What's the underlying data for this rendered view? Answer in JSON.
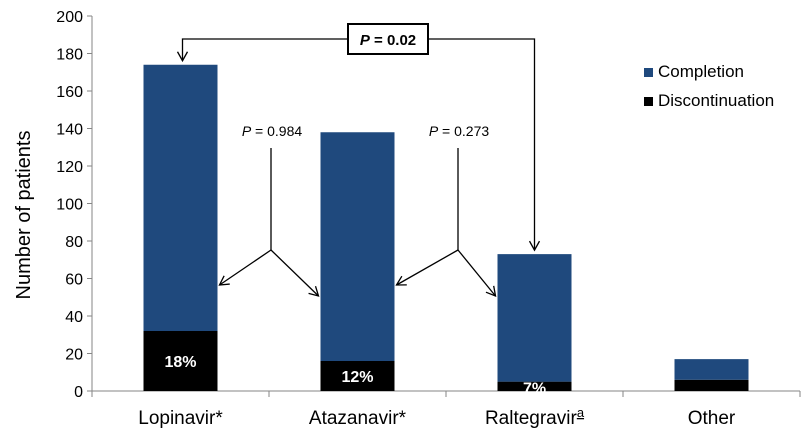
{
  "chart_data": {
    "type": "bar",
    "stacked": true,
    "ylabel": "Number of patients",
    "ylim": [
      0,
      200
    ],
    "yticks": [
      0,
      20,
      40,
      60,
      80,
      100,
      120,
      140,
      160,
      180,
      200
    ],
    "categories": [
      "Lopinavir*",
      "Atazanavir*",
      "Raltegravir",
      "Other"
    ],
    "category_superscripts": [
      "",
      "",
      "a",
      ""
    ],
    "series": [
      {
        "name": "Discontinuation",
        "color": "#000000",
        "values": [
          32,
          16,
          5,
          6
        ]
      },
      {
        "name": "Completion",
        "color": "#1f497d",
        "values": [
          142,
          122,
          68,
          11
        ]
      }
    ],
    "data_labels": [
      "18%",
      "12%",
      "7%",
      ""
    ],
    "legend": {
      "placement": "top-right",
      "order": [
        "Completion",
        "Discontinuation"
      ]
    },
    "annotations": [
      {
        "text_italic": "P",
        "text_rest": " = 0.02",
        "bold": true,
        "boxed": true,
        "between": [
          "Lopinavir*",
          "Raltegravir"
        ]
      },
      {
        "text_italic": "P",
        "text_rest": " = 0.984",
        "bold": false,
        "boxed": false,
        "between": [
          "Lopinavir*",
          "Atazanavir*"
        ]
      },
      {
        "text_italic": "P",
        "text_rest": " = 0.273",
        "bold": false,
        "boxed": false,
        "between": [
          "Atazanavir*",
          "Raltegravir"
        ]
      }
    ],
    "grid": false
  }
}
